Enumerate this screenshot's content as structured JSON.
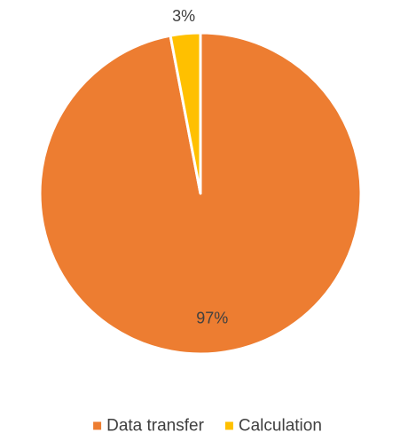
{
  "chart_data": {
    "type": "pie",
    "title": "",
    "categories": [
      "Data transfer",
      "Calculation"
    ],
    "values": [
      97,
      3
    ],
    "data_labels": [
      "97%",
      "3%"
    ],
    "colors": [
      "#ED7D31",
      "#FFC000"
    ],
    "legend_position": "bottom",
    "start_angle_deg": 0,
    "direction": "clockwise"
  }
}
